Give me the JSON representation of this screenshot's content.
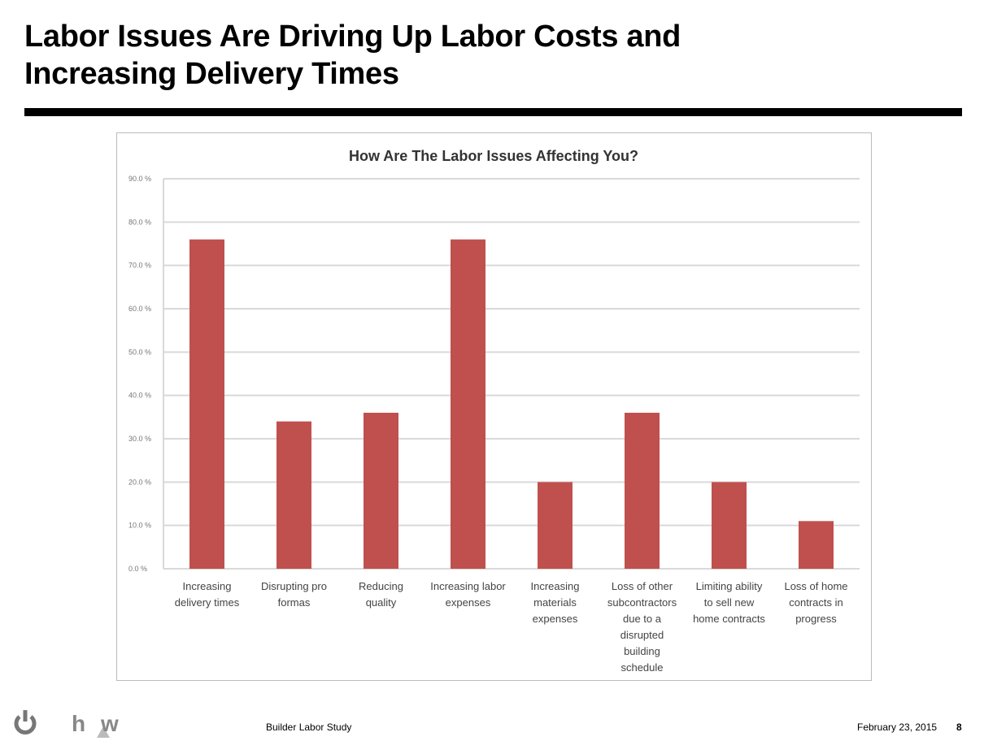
{
  "slide": {
    "title_line1": "Labor Issues Are Driving Up Labor Costs and",
    "title_line2": "Increasing Delivery Times",
    "footer_center": "Builder Labor Study",
    "footer_date": "February 23, 2015",
    "page_number": "8",
    "logo_text": "hw"
  },
  "chart_data": {
    "type": "bar",
    "title": "How Are The Labor Issues Affecting You?",
    "categories": [
      [
        "Increasing",
        "delivery times"
      ],
      [
        "Disrupting pro",
        "formas"
      ],
      [
        "Reducing",
        "quality"
      ],
      [
        "Increasing labor",
        "expenses"
      ],
      [
        "Increasing",
        "materials",
        "expenses"
      ],
      [
        "Loss of other",
        "subcontractors",
        "due to a",
        "disrupted",
        "building",
        "schedule"
      ],
      [
        "Limiting ability",
        "to sell new",
        "home contracts"
      ],
      [
        "Loss of home",
        "contracts in",
        "progress"
      ]
    ],
    "values": [
      76,
      34,
      36,
      76,
      20,
      36,
      20,
      11
    ],
    "yticks": [
      "0.0 %",
      "10.0 %",
      "20.0 %",
      "30.0 %",
      "40.0 %",
      "50.0 %",
      "60.0 %",
      "70.0 %",
      "80.0 %",
      "90.0 %"
    ],
    "ylim": [
      0,
      90
    ],
    "grid": true,
    "bar_color": "#c0504d"
  }
}
